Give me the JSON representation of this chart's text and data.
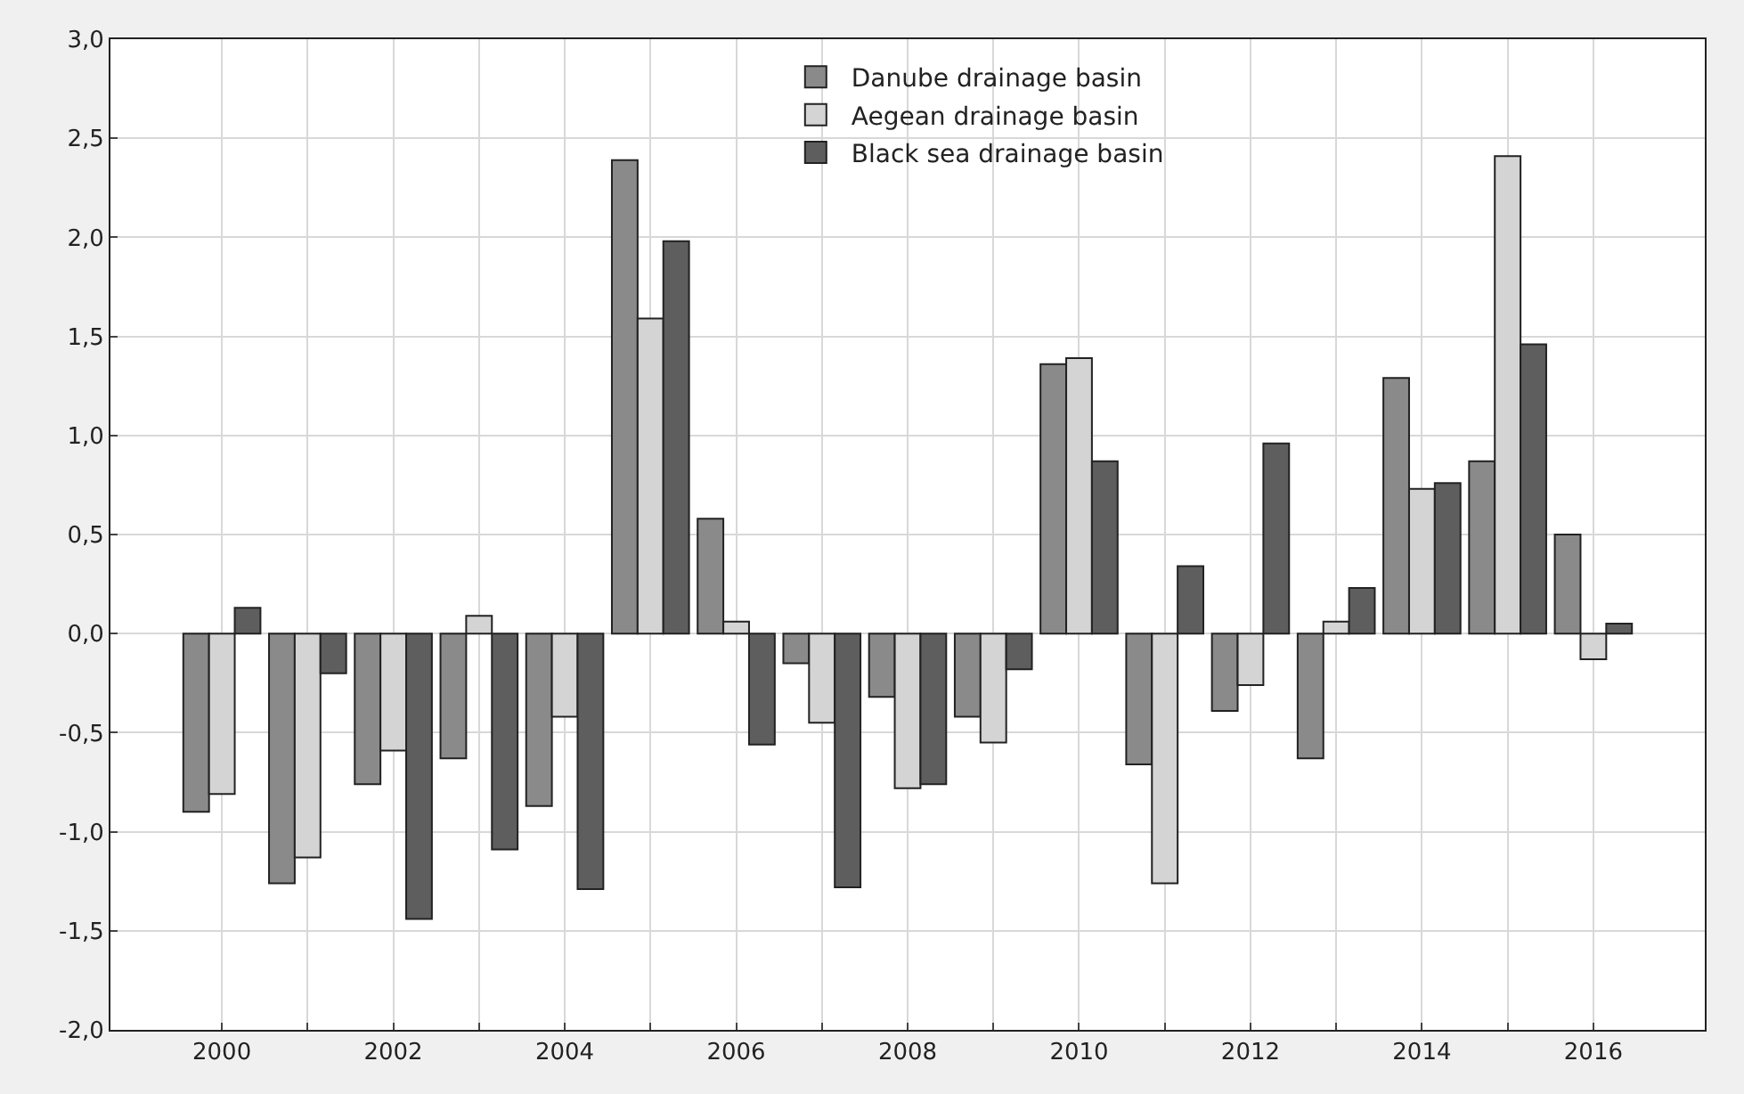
{
  "chart_data": {
    "type": "bar",
    "x": [
      2000,
      2001,
      2002,
      2003,
      2004,
      2005,
      2006,
      2007,
      2008,
      2009,
      2010,
      2011,
      2012,
      2013,
      2014,
      2015,
      2016
    ],
    "series": [
      {
        "name": "Danube drainage basin",
        "color": "#8a8a8a",
        "values": [
          -0.9,
          -1.26,
          -0.76,
          -0.63,
          -0.87,
          2.39,
          0.58,
          -0.15,
          -0.32,
          -0.42,
          1.36,
          -0.66,
          -0.39,
          -0.63,
          1.29,
          0.87,
          0.5
        ]
      },
      {
        "name": "Aegean drainage basin",
        "color": "#d4d4d4",
        "values": [
          -0.81,
          -1.13,
          -0.59,
          0.09,
          -0.42,
          1.59,
          0.06,
          -0.45,
          -0.78,
          -0.55,
          1.39,
          -1.26,
          -0.26,
          0.06,
          0.73,
          2.41,
          -0.13
        ]
      },
      {
        "name": "Black sea drainage basin",
        "color": "#5e5e5e",
        "values": [
          0.13,
          -0.2,
          -1.44,
          -1.09,
          -1.29,
          1.98,
          -0.56,
          -1.28,
          -0.76,
          -0.18,
          0.87,
          0.34,
          0.96,
          0.23,
          0.76,
          1.46,
          0.05
        ]
      }
    ],
    "xlim": [
      1998.7,
      2017.3
    ],
    "xticks": [
      2000,
      {
        "value": 2001,
        "label": null
      },
      2002,
      {
        "value": 2003,
        "label": null
      },
      2004,
      {
        "value": 2005,
        "label": null
      },
      2006,
      {
        "value": 2007,
        "label": null
      },
      2008,
      {
        "value": 2009,
        "label": null
      },
      2010,
      {
        "value": 2011,
        "label": null
      },
      2012,
      {
        "value": 2013,
        "label": null
      },
      2014,
      {
        "value": 2015,
        "label": null
      },
      2016
    ],
    "ylim": [
      -2.0,
      3.0
    ],
    "yticks": [
      {
        "value": -2.0,
        "label": "-2,0"
      },
      {
        "value": -1.5,
        "label": "-1,5"
      },
      {
        "value": -1.0,
        "label": "-1,0"
      },
      {
        "value": -0.5,
        "label": "-0,5"
      },
      {
        "value": 0.0,
        "label": "0,0"
      },
      {
        "value": 0.5,
        "label": "0,5"
      },
      {
        "value": 1.0,
        "label": "1,0"
      },
      {
        "value": 1.5,
        "label": "1,5"
      },
      {
        "value": 2.0,
        "label": "2,0"
      },
      {
        "value": 2.5,
        "label": "2,5"
      },
      {
        "value": 3.0,
        "label": "3,0"
      }
    ],
    "grid": true,
    "legend": "top"
  }
}
